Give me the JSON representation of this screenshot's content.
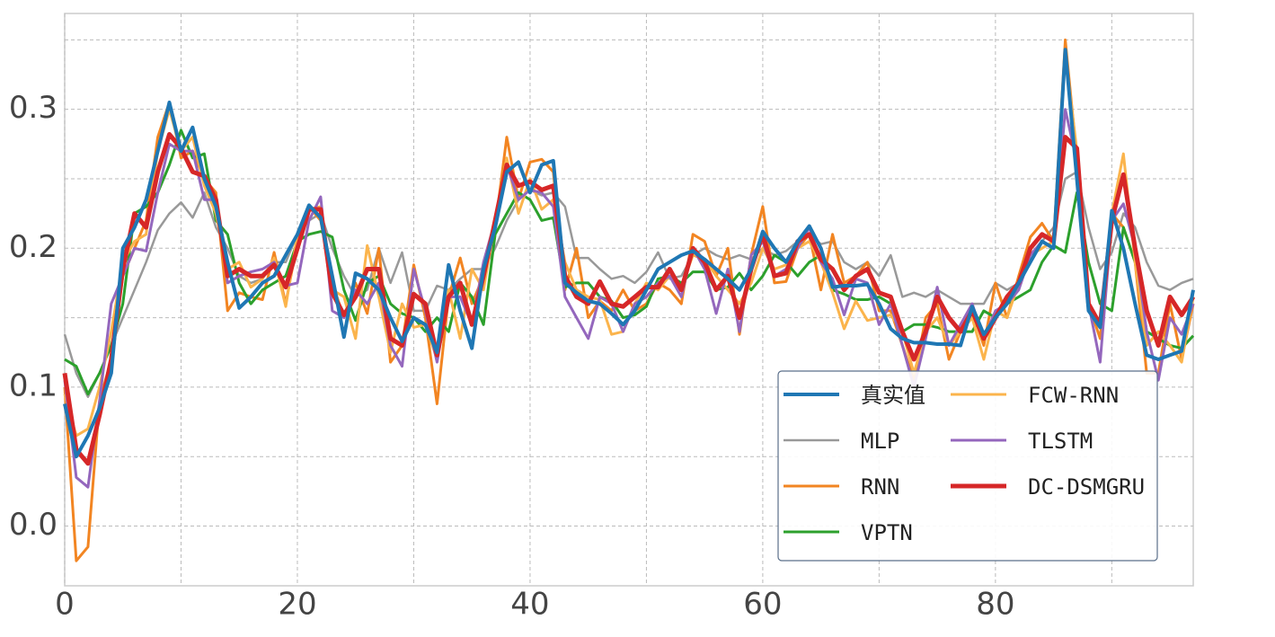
{
  "chart_data": {
    "type": "line",
    "x": [
      0,
      1,
      2,
      3,
      4,
      5,
      6,
      7,
      8,
      9,
      10,
      11,
      12,
      13,
      14,
      15,
      16,
      17,
      18,
      19,
      20,
      21,
      22,
      23,
      24,
      25,
      26,
      27,
      28,
      29,
      30,
      31,
      32,
      33,
      34,
      35,
      36,
      37,
      38,
      39,
      40,
      41,
      42,
      43,
      44,
      45,
      46,
      47,
      48,
      49,
      50,
      51,
      52,
      53,
      54,
      55,
      56,
      57,
      58,
      59,
      60,
      61,
      62,
      63,
      64,
      65,
      66,
      67,
      68,
      69,
      70,
      71,
      72,
      73,
      74,
      75,
      76,
      77,
      78,
      79,
      80,
      81,
      82,
      83,
      84,
      85,
      86,
      87,
      88,
      89,
      90,
      91,
      92,
      93,
      94,
      95,
      96,
      97
    ],
    "series": [
      {
        "name": "真实值",
        "color": "#1f77b4",
        "width": 4,
        "values": [
          0.088,
          0.05,
          0.065,
          0.085,
          0.11,
          0.2,
          0.215,
          0.235,
          0.27,
          0.305,
          0.27,
          0.287,
          0.25,
          0.23,
          0.19,
          0.157,
          0.165,
          0.175,
          0.18,
          0.195,
          0.21,
          0.231,
          0.222,
          0.18,
          0.136,
          0.182,
          0.178,
          0.17,
          0.15,
          0.133,
          0.15,
          0.145,
          0.125,
          0.188,
          0.155,
          0.128,
          0.185,
          0.215,
          0.255,
          0.262,
          0.24,
          0.26,
          0.263,
          0.175,
          0.168,
          0.162,
          0.16,
          0.153,
          0.145,
          0.155,
          0.17,
          0.185,
          0.19,
          0.195,
          0.198,
          0.192,
          0.185,
          0.178,
          0.17,
          0.185,
          0.212,
          0.2,
          0.19,
          0.205,
          0.216,
          0.2,
          0.172,
          0.173,
          0.173,
          0.174,
          0.16,
          0.142,
          0.135,
          0.132,
          0.132,
          0.131,
          0.131,
          0.13,
          0.158,
          0.138,
          0.15,
          0.16,
          0.175,
          0.19,
          0.205,
          0.2,
          0.343,
          0.25,
          0.155,
          0.143,
          0.227,
          0.2,
          0.16,
          0.123,
          0.12,
          0.123,
          0.126,
          0.17
        ]
      },
      {
        "name": "MLP",
        "color": "#999999",
        "width": 2.5,
        "values": [
          0.138,
          0.11,
          0.093,
          0.11,
          0.13,
          0.15,
          0.17,
          0.19,
          0.213,
          0.225,
          0.233,
          0.222,
          0.24,
          0.215,
          0.2,
          0.18,
          0.175,
          0.178,
          0.19,
          0.19,
          0.21,
          0.22,
          0.225,
          0.2,
          0.18,
          0.165,
          0.17,
          0.2,
          0.175,
          0.197,
          0.155,
          0.155,
          0.173,
          0.17,
          0.178,
          0.185,
          0.185,
          0.2,
          0.22,
          0.235,
          0.242,
          0.238,
          0.24,
          0.23,
          0.193,
          0.193,
          0.185,
          0.178,
          0.18,
          0.175,
          0.183,
          0.197,
          0.178,
          0.18,
          0.195,
          0.2,
          0.195,
          0.192,
          0.195,
          0.192,
          0.2,
          0.195,
          0.198,
          0.205,
          0.21,
          0.203,
          0.205,
          0.19,
          0.185,
          0.19,
          0.18,
          0.195,
          0.165,
          0.168,
          0.165,
          0.17,
          0.165,
          0.16,
          0.16,
          0.16,
          0.175,
          0.17,
          0.175,
          0.19,
          0.205,
          0.215,
          0.25,
          0.255,
          0.215,
          0.185,
          0.197,
          0.225,
          0.215,
          0.19,
          0.173,
          0.17,
          0.175,
          0.178
        ]
      },
      {
        "name": "RNN",
        "color": "#f28522",
        "width": 3,
        "values": [
          0.1,
          -0.025,
          -0.015,
          0.09,
          0.12,
          0.18,
          0.2,
          0.22,
          0.28,
          0.305,
          0.265,
          0.27,
          0.25,
          0.24,
          0.155,
          0.168,
          0.165,
          0.163,
          0.197,
          0.16,
          0.205,
          0.23,
          0.22,
          0.175,
          0.15,
          0.175,
          0.153,
          0.2,
          0.118,
          0.13,
          0.188,
          0.15,
          0.088,
          0.165,
          0.193,
          0.16,
          0.18,
          0.215,
          0.28,
          0.235,
          0.262,
          0.264,
          0.255,
          0.17,
          0.2,
          0.15,
          0.162,
          0.155,
          0.17,
          0.155,
          0.16,
          0.175,
          0.17,
          0.16,
          0.21,
          0.205,
          0.18,
          0.2,
          0.138,
          0.195,
          0.23,
          0.175,
          0.176,
          0.2,
          0.21,
          0.17,
          0.21,
          0.175,
          0.18,
          0.19,
          0.155,
          0.155,
          0.13,
          0.105,
          0.15,
          0.16,
          0.12,
          0.14,
          0.155,
          0.13,
          0.175,
          0.15,
          0.18,
          0.208,
          0.218,
          0.205,
          0.35,
          0.265,
          0.16,
          0.135,
          0.225,
          0.215,
          0.19,
          0.11,
          0.11,
          0.16,
          0.12,
          0.16
        ]
      },
      {
        "name": "VPTN",
        "color": "#2ca02c",
        "width": 3,
        "values": [
          0.12,
          0.115,
          0.095,
          0.11,
          0.13,
          0.16,
          0.225,
          0.23,
          0.24,
          0.26,
          0.285,
          0.265,
          0.268,
          0.22,
          0.21,
          0.175,
          0.16,
          0.17,
          0.175,
          0.18,
          0.205,
          0.21,
          0.212,
          0.208,
          0.17,
          0.148,
          0.175,
          0.18,
          0.16,
          0.153,
          0.15,
          0.14,
          0.15,
          0.14,
          0.175,
          0.165,
          0.145,
          0.21,
          0.225,
          0.24,
          0.235,
          0.22,
          0.222,
          0.172,
          0.175,
          0.175,
          0.165,
          0.162,
          0.15,
          0.152,
          0.158,
          0.178,
          0.18,
          0.175,
          0.183,
          0.183,
          0.17,
          0.172,
          0.182,
          0.17,
          0.18,
          0.195,
          0.19,
          0.18,
          0.19,
          0.195,
          0.17,
          0.167,
          0.163,
          0.163,
          0.165,
          0.16,
          0.14,
          0.145,
          0.145,
          0.143,
          0.14,
          0.14,
          0.14,
          0.155,
          0.15,
          0.16,
          0.165,
          0.17,
          0.19,
          0.202,
          0.197,
          0.24,
          0.19,
          0.16,
          0.155,
          0.215,
          0.19,
          0.14,
          0.135,
          0.13,
          0.128,
          0.137
        ]
      },
      {
        "name": "FCW-RNN",
        "color": "#fbb44c",
        "width": 3,
        "values": [
          0.095,
          0.065,
          0.07,
          0.1,
          0.14,
          0.19,
          0.205,
          0.21,
          0.27,
          0.3,
          0.27,
          0.28,
          0.245,
          0.225,
          0.185,
          0.19,
          0.172,
          0.178,
          0.193,
          0.158,
          0.21,
          0.228,
          0.23,
          0.17,
          0.165,
          0.135,
          0.202,
          0.165,
          0.125,
          0.16,
          0.143,
          0.145,
          0.12,
          0.17,
          0.135,
          0.185,
          0.17,
          0.22,
          0.265,
          0.225,
          0.25,
          0.228,
          0.235,
          0.19,
          0.17,
          0.165,
          0.163,
          0.138,
          0.14,
          0.16,
          0.175,
          0.17,
          0.18,
          0.172,
          0.195,
          0.192,
          0.18,
          0.17,
          0.16,
          0.175,
          0.2,
          0.185,
          0.188,
          0.2,
          0.205,
          0.19,
          0.168,
          0.142,
          0.162,
          0.148,
          0.15,
          0.152,
          0.14,
          0.11,
          0.14,
          0.15,
          0.13,
          0.14,
          0.15,
          0.12,
          0.155,
          0.15,
          0.175,
          0.195,
          0.2,
          0.205,
          0.34,
          0.27,
          0.16,
          0.145,
          0.225,
          0.268,
          0.19,
          0.13,
          0.14,
          0.13,
          0.118,
          0.165
        ]
      },
      {
        "name": "TLSTM",
        "color": "#9467bd",
        "width": 3,
        "values": [
          0.105,
          0.035,
          0.028,
          0.09,
          0.16,
          0.18,
          0.2,
          0.198,
          0.24,
          0.275,
          0.27,
          0.27,
          0.235,
          0.235,
          0.175,
          0.18,
          0.183,
          0.185,
          0.19,
          0.173,
          0.175,
          0.22,
          0.237,
          0.155,
          0.15,
          0.17,
          0.16,
          0.175,
          0.13,
          0.115,
          0.185,
          0.155,
          0.118,
          0.165,
          0.165,
          0.145,
          0.19,
          0.22,
          0.26,
          0.235,
          0.242,
          0.24,
          0.23,
          0.165,
          0.15,
          0.135,
          0.165,
          0.16,
          0.14,
          0.16,
          0.165,
          0.175,
          0.18,
          0.165,
          0.2,
          0.185,
          0.153,
          0.185,
          0.14,
          0.195,
          0.205,
          0.18,
          0.185,
          0.2,
          0.215,
          0.19,
          0.178,
          0.152,
          0.178,
          0.175,
          0.145,
          0.16,
          0.13,
          0.1,
          0.135,
          0.172,
          0.13,
          0.145,
          0.16,
          0.135,
          0.155,
          0.16,
          0.17,
          0.195,
          0.205,
          0.2,
          0.3,
          0.262,
          0.16,
          0.118,
          0.22,
          0.232,
          0.2,
          0.14,
          0.105,
          0.15,
          0.138,
          0.16
        ]
      },
      {
        "name": "DC-DSMGRU",
        "color": "#d62728",
        "width": 5,
        "values": [
          0.11,
          0.055,
          0.045,
          0.08,
          0.12,
          0.185,
          0.225,
          0.215,
          0.255,
          0.282,
          0.272,
          0.255,
          0.252,
          0.235,
          0.18,
          0.185,
          0.18,
          0.18,
          0.188,
          0.172,
          0.2,
          0.228,
          0.228,
          0.168,
          0.152,
          0.165,
          0.185,
          0.185,
          0.135,
          0.13,
          0.167,
          0.16,
          0.123,
          0.165,
          0.175,
          0.145,
          0.18,
          0.22,
          0.26,
          0.245,
          0.248,
          0.242,
          0.245,
          0.18,
          0.165,
          0.16,
          0.176,
          0.16,
          0.158,
          0.165,
          0.172,
          0.172,
          0.185,
          0.17,
          0.2,
          0.19,
          0.17,
          0.18,
          0.15,
          0.185,
          0.21,
          0.18,
          0.182,
          0.205,
          0.21,
          0.192,
          0.185,
          0.17,
          0.18,
          0.185,
          0.168,
          0.165,
          0.14,
          0.12,
          0.14,
          0.165,
          0.15,
          0.14,
          0.155,
          0.135,
          0.15,
          0.165,
          0.175,
          0.2,
          0.21,
          0.205,
          0.28,
          0.272,
          0.16,
          0.145,
          0.22,
          0.253,
          0.2,
          0.155,
          0.13,
          0.165,
          0.152,
          0.165
        ]
      }
    ],
    "xlim": [
      0,
      97
    ],
    "ylim": [
      -0.043,
      0.369
    ],
    "xticks": [
      0,
      20,
      40,
      60,
      80
    ],
    "yticks": [
      {
        "value": 0,
        "label": "0.0"
      },
      0.1,
      0.2,
      0.3
    ],
    "xminor": [
      10,
      30,
      50,
      70,
      90
    ],
    "yminor": [
      0.05,
      0.15,
      0.25,
      0.35
    ],
    "grid": true,
    "legend": "lower right"
  }
}
